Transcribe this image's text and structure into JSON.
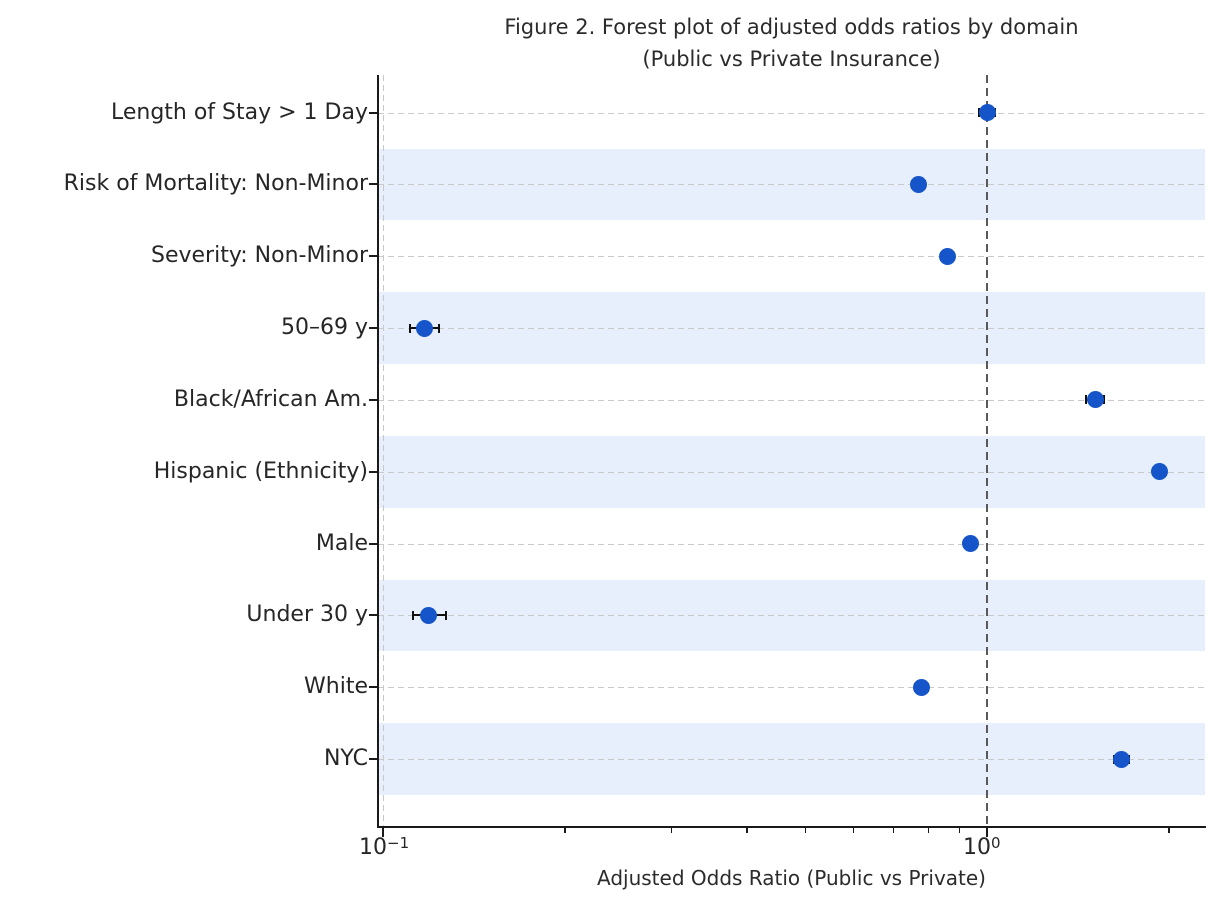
{
  "chart_data": {
    "type": "scatter",
    "subtype": "forest-plot",
    "title": "Figure 2. Forest plot of adjusted odds ratios by domain\n(Public vs Private Insurance)",
    "xlabel": "Adjusted Odds Ratio (Public vs Private)",
    "ylabel": "",
    "xscale": "log",
    "xlim": [
      0.098,
      2.3
    ],
    "grid": "dashed horizontal per row, dashed vertical at major ticks",
    "legend": "none",
    "reference_line_x": 1.0,
    "x_major_ticks": [
      {
        "value": 0.1,
        "base": "10",
        "exp": "−1"
      },
      {
        "value": 1.0,
        "base": "10",
        "exp": "0"
      }
    ],
    "x_minor_ticks": [
      0.2,
      0.3,
      0.4,
      0.5,
      0.6,
      0.7,
      0.8,
      0.9,
      2.0
    ],
    "rows": [
      {
        "label": "Length of Stay > 1 Day",
        "or": 1.0,
        "ci_lo": 0.97,
        "ci_hi": 1.03,
        "shaded": false
      },
      {
        "label": "Risk of Mortality: Non-Minor",
        "or": 0.77,
        "ci_lo": 0.75,
        "ci_hi": 0.79,
        "shaded": true
      },
      {
        "label": "Severity: Non-Minor",
        "or": 0.86,
        "ci_lo": 0.84,
        "ci_hi": 0.88,
        "shaded": false
      },
      {
        "label": "50–69 y",
        "or": 0.117,
        "ci_lo": 0.111,
        "ci_hi": 0.124,
        "shaded": true
      },
      {
        "label": "Black/African Am.",
        "or": 1.51,
        "ci_lo": 1.46,
        "ci_hi": 1.56,
        "shaded": false
      },
      {
        "label": "Hispanic (Ethnicity)",
        "or": 1.93,
        "ci_lo": 1.88,
        "ci_hi": 1.98,
        "shaded": true
      },
      {
        "label": "Male",
        "or": 0.94,
        "ci_lo": 0.92,
        "ci_hi": 0.96,
        "shaded": false
      },
      {
        "label": "Under 30 y",
        "or": 0.119,
        "ci_lo": 0.112,
        "ci_hi": 0.127,
        "shaded": true
      },
      {
        "label": "White",
        "or": 0.78,
        "ci_lo": 0.76,
        "ci_hi": 0.8,
        "shaded": false
      },
      {
        "label": "NYC",
        "or": 1.67,
        "ci_lo": 1.62,
        "ci_hi": 1.72,
        "shaded": true
      }
    ],
    "colors": {
      "marker": "#1655c9",
      "error_bar": "#111111",
      "band": "#e7effc",
      "gridline": "#c9c9c9",
      "reference_line": "#595959",
      "spine": "#1a1a1a",
      "text": "#262626",
      "background": "#ffffff"
    }
  }
}
